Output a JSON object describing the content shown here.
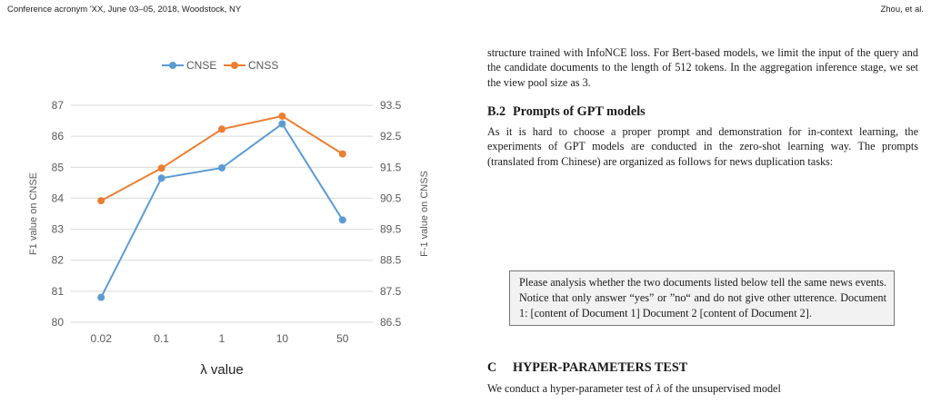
{
  "header": {
    "left": "Conference acronym 'XX, June 03–05, 2018, Woodstock, NY",
    "right": "Zhou, et al."
  },
  "chart_data": {
    "type": "line",
    "categories": [
      "0.02",
      "0.1",
      "1",
      "10",
      "50"
    ],
    "xlabel": "λ value",
    "ylabel": "F1  value on CNSE",
    "ylabel_right": "F-1 value on CNSS",
    "ylim": [
      80,
      87
    ],
    "ylim_right": [
      86.5,
      93.5
    ],
    "yticks": [
      "80",
      "81",
      "82",
      "83",
      "84",
      "85",
      "86",
      "87"
    ],
    "yticks_right": [
      "86.5",
      "87.5",
      "88.5",
      "89.5",
      "90.5",
      "91.5",
      "92.5",
      "93.5"
    ],
    "legend_position": "top",
    "grid": true,
    "series": [
      {
        "name": "CNSE",
        "axis": "left",
        "color": "#5b9bd5",
        "values": [
          80.8,
          84.65,
          84.98,
          86.4,
          83.3
        ]
      },
      {
        "name": "CNSS",
        "axis": "right",
        "color": "#ed7d31",
        "values": [
          90.42,
          91.47,
          92.73,
          93.15,
          91.93
        ]
      }
    ]
  },
  "body": {
    "intro": "structure trained with InfoNCE loss. For Bert-based models, we limit the input of the query and the candidate documents to the length of 512 tokens. In the aggregation inference stage, we set the view pool size as 3.",
    "b2_num": "B.2",
    "b2_title": "Prompts of GPT models",
    "b2_text": "As it is hard to choose a proper prompt and demonstration for in-context learning, the experiments of GPT models are conducted in the zero-shot learning way. The prompts (translated from Chinese) are organized as follows for news duplication tasks:",
    "prompt_box": "Please analysis whether the two documents listed below tell the same news events. Notice that only answer “yes” or ”no“ and do not give other utterence. Document 1: [content of Document 1] Document 2 [content of Document 2].",
    "c_num": "C",
    "c_title": "HYPER-PARAMETERS TEST",
    "c_text_a": "We conduct a hyper-parameter test of ",
    "c_text_lambda": "λ",
    "c_text_b": " of the unsupervised model"
  }
}
